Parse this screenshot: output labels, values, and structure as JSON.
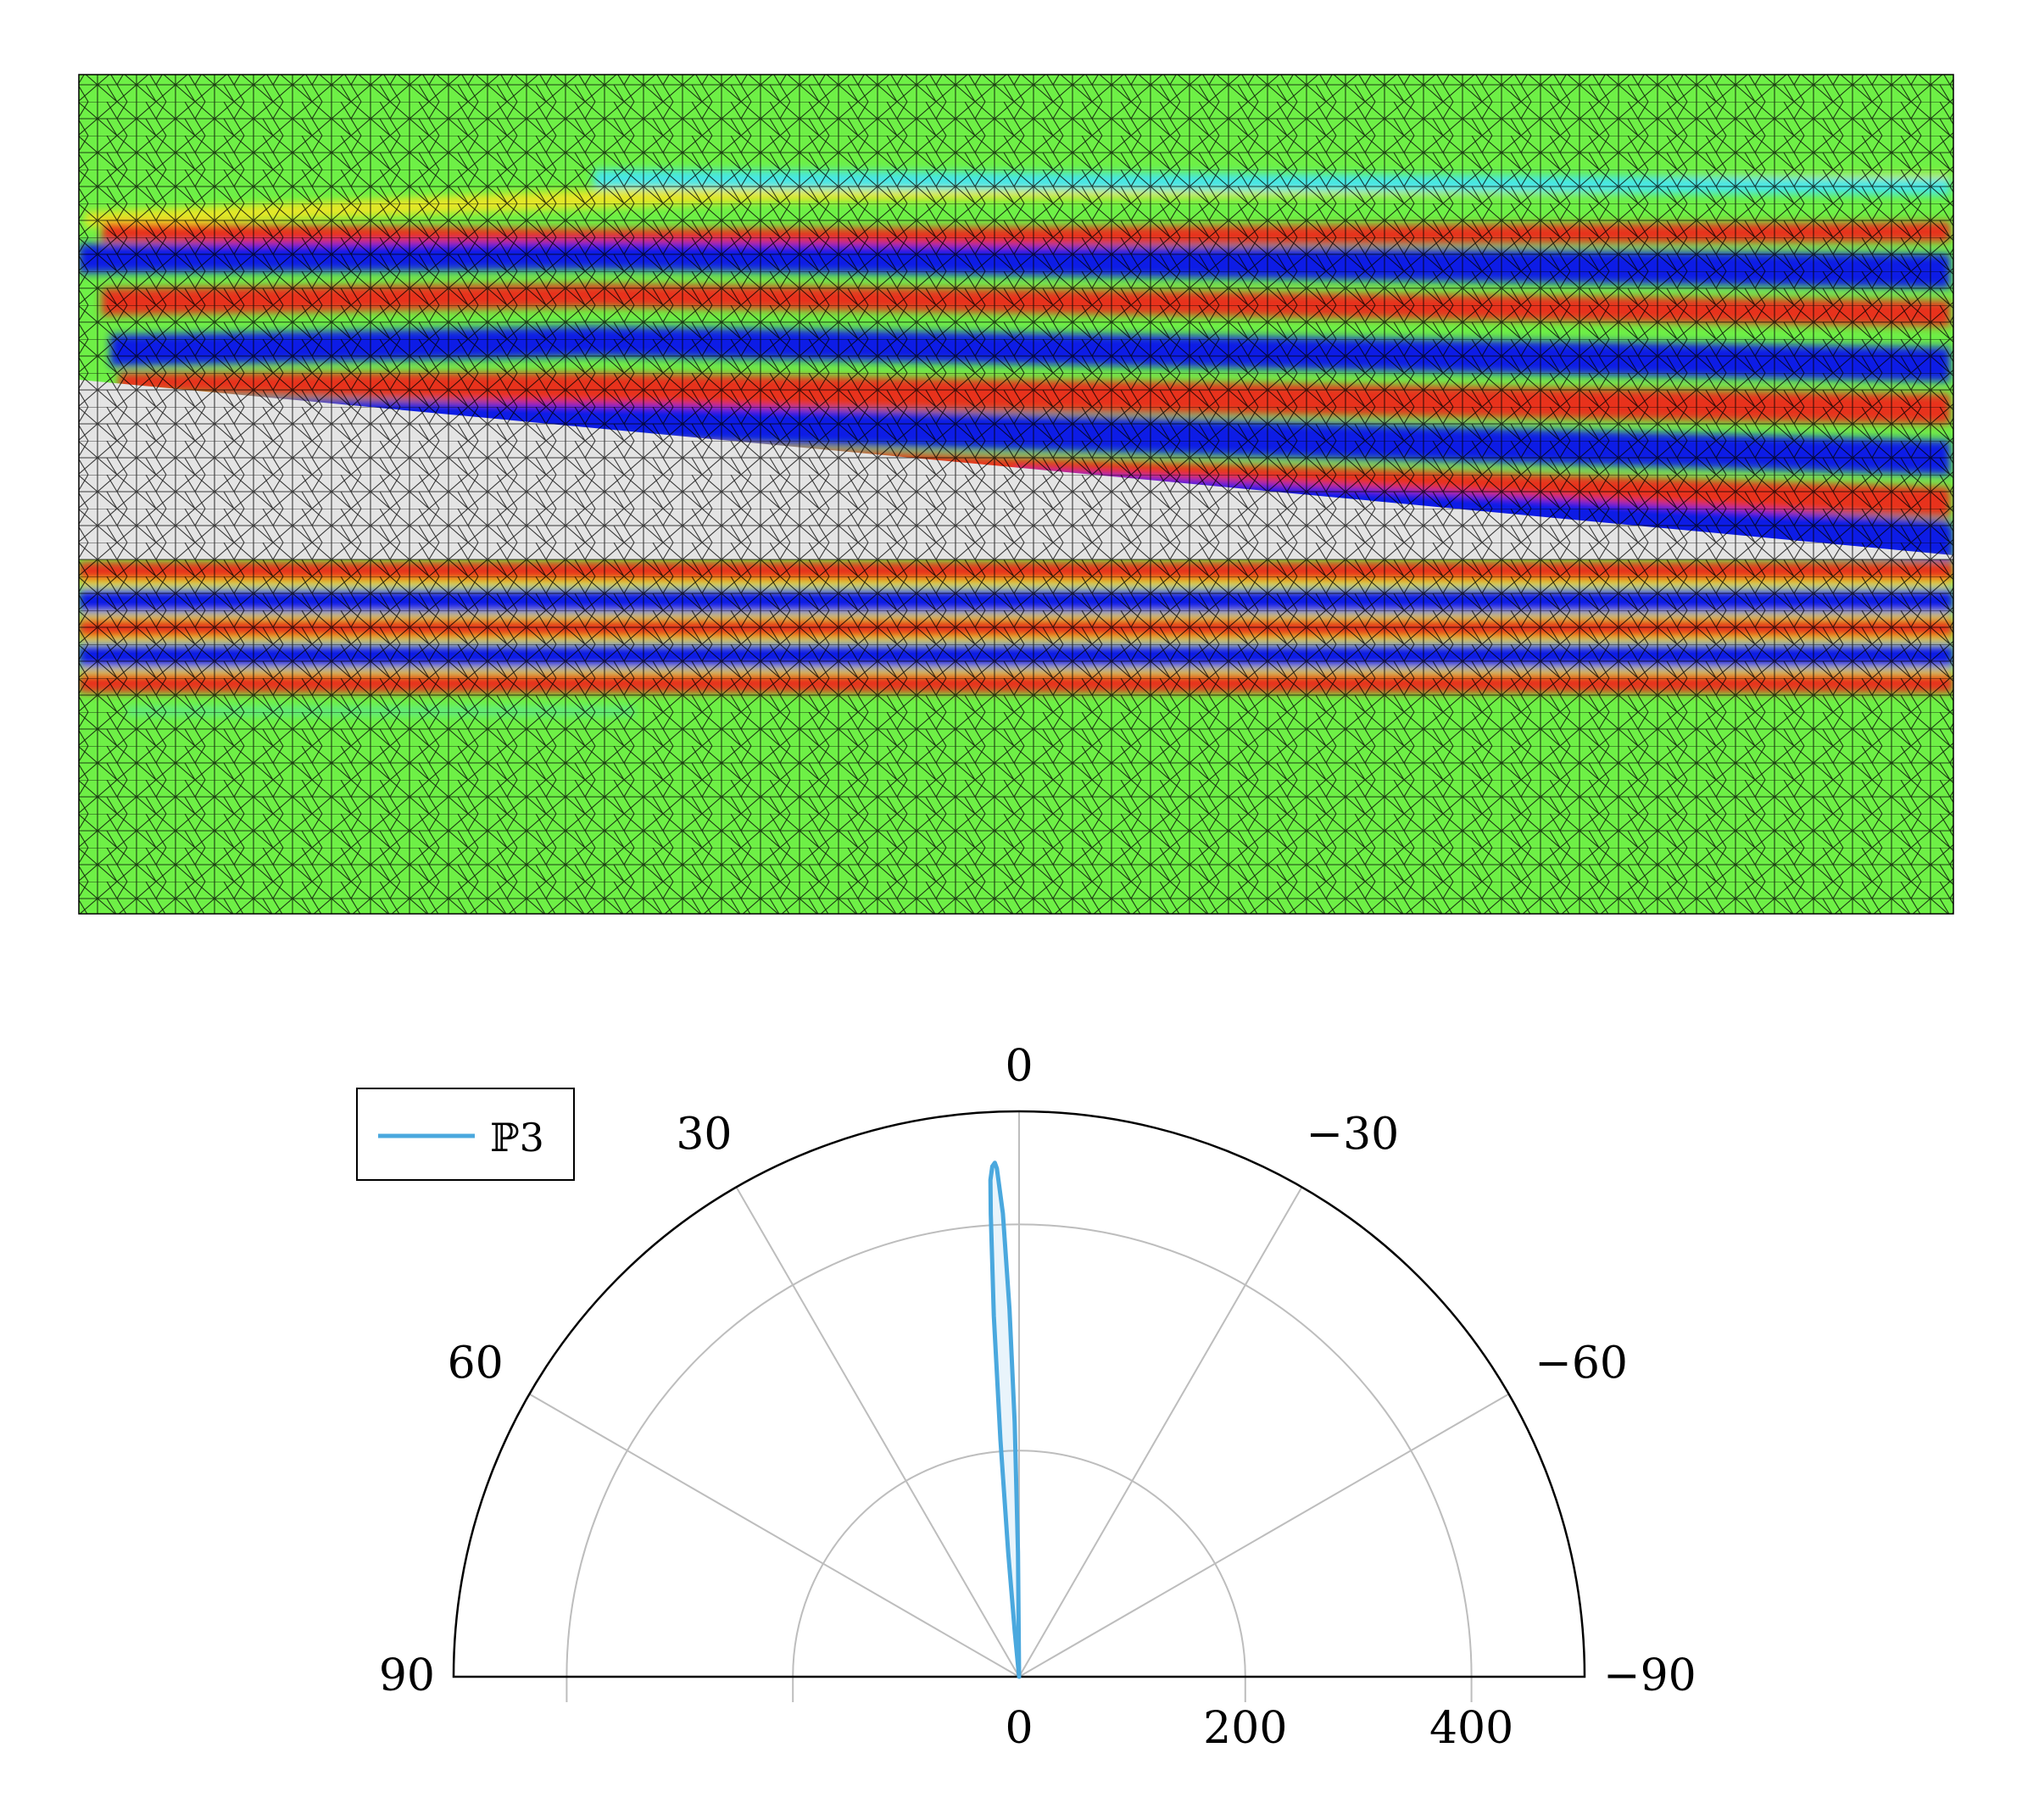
{
  "colors": {
    "field_green": "#6ef046",
    "field_red": "#e8321e",
    "field_blue": "#0a1ee6",
    "field_yellow": "#e6e628",
    "field_cyan": "#46e6e6",
    "obstacle_gray": "#e4e4e4",
    "mesh_line": "#000000",
    "series_blue": "#4aa8de",
    "grid_gray": "#bdbdbd"
  },
  "chart_data": [
    {
      "type": "heatmap",
      "description_free": true,
      "colormap": "jet",
      "mesh": "triangular",
      "xlabel": "",
      "ylabel": ""
    },
    {
      "type": "polar",
      "theta_range": [
        90,
        -90
      ],
      "theta_ticks": [
        90,
        60,
        30,
        0,
        -30,
        -60,
        -90
      ],
      "theta_tick_labels": [
        "90",
        "60",
        "30",
        "0",
        "−30",
        "−60",
        "−90"
      ],
      "r_range": [
        0,
        500
      ],
      "r_grid": [
        200,
        400
      ],
      "r_tick_labels": [
        "0",
        "200",
        "400"
      ],
      "grid": true,
      "legend_position": "top-left",
      "series": [
        {
          "name": "ℙ3",
          "color": "#4aa8de",
          "theta": [
            0,
            0.5,
            1.0,
            1.5,
            2.0,
            2.5,
            2.7,
            3.0,
            3.3,
            3.5,
            4.0,
            4.5,
            5.0,
            5.5,
            6.0
          ],
          "r": [
            0,
            110,
            225,
            325,
            410,
            450,
            455,
            452,
            440,
            410,
            320,
            210,
            110,
            40,
            0
          ]
        }
      ]
    }
  ]
}
